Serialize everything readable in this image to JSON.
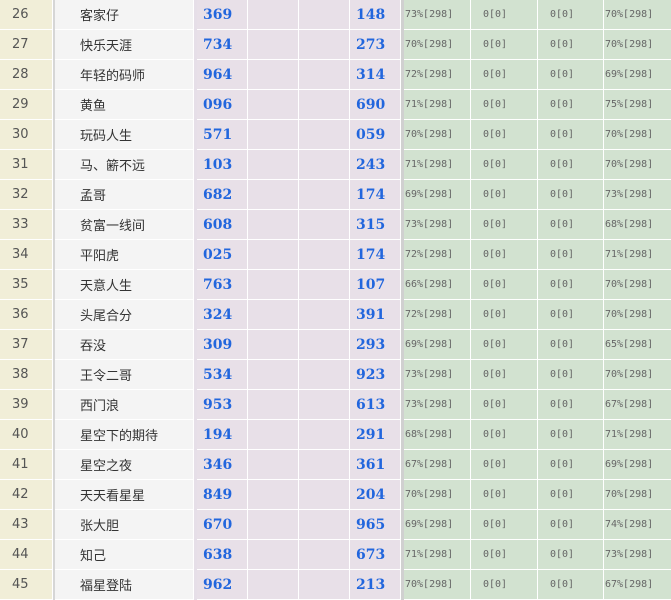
{
  "table": {
    "rows": [
      {
        "rank": "26",
        "name": "客家仔",
        "a": "369",
        "b": "",
        "c": "",
        "d": "148",
        "p1": "73%[298]",
        "z1": "0[0]",
        "z2": "0[0]",
        "p2": "70%[298]"
      },
      {
        "rank": "27",
        "name": "快乐天涯",
        "a": "734",
        "b": "",
        "c": "",
        "d": "273",
        "p1": "70%[298]",
        "z1": "0[0]",
        "z2": "0[0]",
        "p2": "70%[298]"
      },
      {
        "rank": "28",
        "name": "年轻的码师",
        "a": "964",
        "b": "",
        "c": "",
        "d": "314",
        "p1": "72%[298]",
        "z1": "0[0]",
        "z2": "0[0]",
        "p2": "69%[298]"
      },
      {
        "rank": "29",
        "name": "黄鱼",
        "a": "096",
        "b": "",
        "c": "",
        "d": "690",
        "p1": "71%[298]",
        "z1": "0[0]",
        "z2": "0[0]",
        "p2": "75%[298]"
      },
      {
        "rank": "30",
        "name": "玩码人生",
        "a": "571",
        "b": "",
        "c": "",
        "d": "059",
        "p1": "70%[298]",
        "z1": "0[0]",
        "z2": "0[0]",
        "p2": "70%[298]"
      },
      {
        "rank": "31",
        "name": "马、簖不远",
        "a": "103",
        "b": "",
        "c": "",
        "d": "243",
        "p1": "71%[298]",
        "z1": "0[0]",
        "z2": "0[0]",
        "p2": "70%[298]"
      },
      {
        "rank": "32",
        "name": "孟哥",
        "a": "682",
        "b": "",
        "c": "",
        "d": "174",
        "p1": "69%[298]",
        "z1": "0[0]",
        "z2": "0[0]",
        "p2": "73%[298]"
      },
      {
        "rank": "33",
        "name": "贫富一线间",
        "a": "608",
        "b": "",
        "c": "",
        "d": "315",
        "p1": "73%[298]",
        "z1": "0[0]",
        "z2": "0[0]",
        "p2": "68%[298]"
      },
      {
        "rank": "34",
        "name": "平阳虎",
        "a": "025",
        "b": "",
        "c": "",
        "d": "174",
        "p1": "72%[298]",
        "z1": "0[0]",
        "z2": "0[0]",
        "p2": "71%[298]"
      },
      {
        "rank": "35",
        "name": "天意人生",
        "a": "763",
        "b": "",
        "c": "",
        "d": "107",
        "p1": "66%[298]",
        "z1": "0[0]",
        "z2": "0[0]",
        "p2": "70%[298]"
      },
      {
        "rank": "36",
        "name": "头尾合分",
        "a": "324",
        "b": "",
        "c": "",
        "d": "391",
        "p1": "72%[298]",
        "z1": "0[0]",
        "z2": "0[0]",
        "p2": "70%[298]"
      },
      {
        "rank": "37",
        "name": "吞没",
        "a": "309",
        "b": "",
        "c": "",
        "d": "293",
        "p1": "69%[298]",
        "z1": "0[0]",
        "z2": "0[0]",
        "p2": "65%[298]"
      },
      {
        "rank": "38",
        "name": "王令二哥",
        "a": "534",
        "b": "",
        "c": "",
        "d": "923",
        "p1": "73%[298]",
        "z1": "0[0]",
        "z2": "0[0]",
        "p2": "70%[298]"
      },
      {
        "rank": "39",
        "name": "西门浪",
        "a": "953",
        "b": "",
        "c": "",
        "d": "613",
        "p1": "73%[298]",
        "z1": "0[0]",
        "z2": "0[0]",
        "p2": "67%[298]"
      },
      {
        "rank": "40",
        "name": "星空下的期待",
        "a": "194",
        "b": "",
        "c": "",
        "d": "291",
        "p1": "68%[298]",
        "z1": "0[0]",
        "z2": "0[0]",
        "p2": "71%[298]"
      },
      {
        "rank": "41",
        "name": "星空之夜",
        "a": "346",
        "b": "",
        "c": "",
        "d": "361",
        "p1": "67%[298]",
        "z1": "0[0]",
        "z2": "0[0]",
        "p2": "69%[298]"
      },
      {
        "rank": "42",
        "name": "天天看星星",
        "a": "849",
        "b": "",
        "c": "",
        "d": "204",
        "p1": "70%[298]",
        "z1": "0[0]",
        "z2": "0[0]",
        "p2": "70%[298]"
      },
      {
        "rank": "43",
        "name": "张大胆",
        "a": "670",
        "b": "",
        "c": "",
        "d": "965",
        "p1": "69%[298]",
        "z1": "0[0]",
        "z2": "0[0]",
        "p2": "74%[298]"
      },
      {
        "rank": "44",
        "name": "知己",
        "a": "638",
        "b": "",
        "c": "",
        "d": "673",
        "p1": "71%[298]",
        "z1": "0[0]",
        "z2": "0[0]",
        "p2": "73%[298]"
      },
      {
        "rank": "45",
        "name": "福星登陆",
        "a": "962",
        "b": "",
        "c": "",
        "d": "213",
        "p1": "70%[298]",
        "z1": "0[0]",
        "z2": "0[0]",
        "p2": "67%[298]"
      }
    ]
  }
}
